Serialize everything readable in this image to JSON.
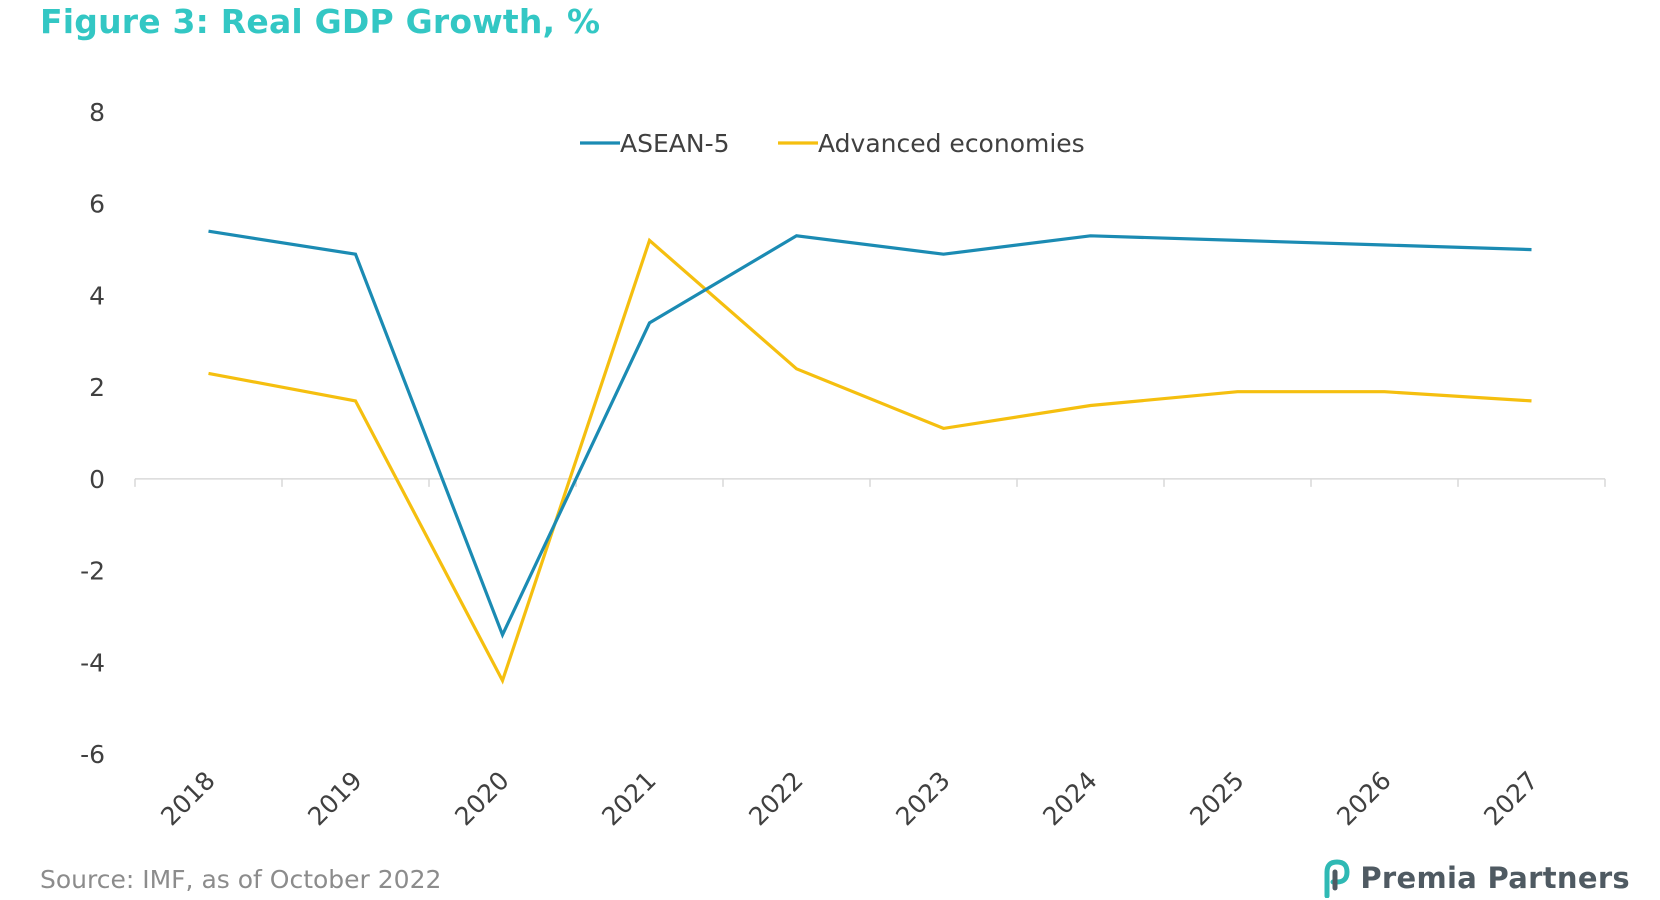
{
  "title": "Figure 3: Real GDP Growth, %",
  "source": "Source: IMF, as of October 2022",
  "logo_text": "Premia Partners",
  "colors": {
    "title": "#33c7c4",
    "asean": "#1b8bb3",
    "advanced": "#f5bf0f",
    "axis": "#d9d9d9"
  },
  "chart_data": {
    "type": "line",
    "x": [
      "2018",
      "2019",
      "2020",
      "2021",
      "2022",
      "2023",
      "2024",
      "2025",
      "2026",
      "2027"
    ],
    "ylim": [
      -6,
      8
    ],
    "yticks": [
      "8",
      "6",
      "4",
      "2",
      "0",
      "-2",
      "-4",
      "-6"
    ],
    "legend_position": "top-center",
    "grid": false,
    "series": [
      {
        "name": "ASEAN-5",
        "color": "#1b8bb3",
        "values": [
          5.4,
          4.9,
          -3.4,
          3.4,
          5.3,
          4.9,
          5.3,
          5.2,
          5.1,
          5.0
        ]
      },
      {
        "name": "Advanced economies",
        "color": "#f5bf0f",
        "values": [
          2.3,
          1.7,
          -4.4,
          5.2,
          2.4,
          1.1,
          1.6,
          1.9,
          1.9,
          1.7
        ]
      }
    ]
  }
}
